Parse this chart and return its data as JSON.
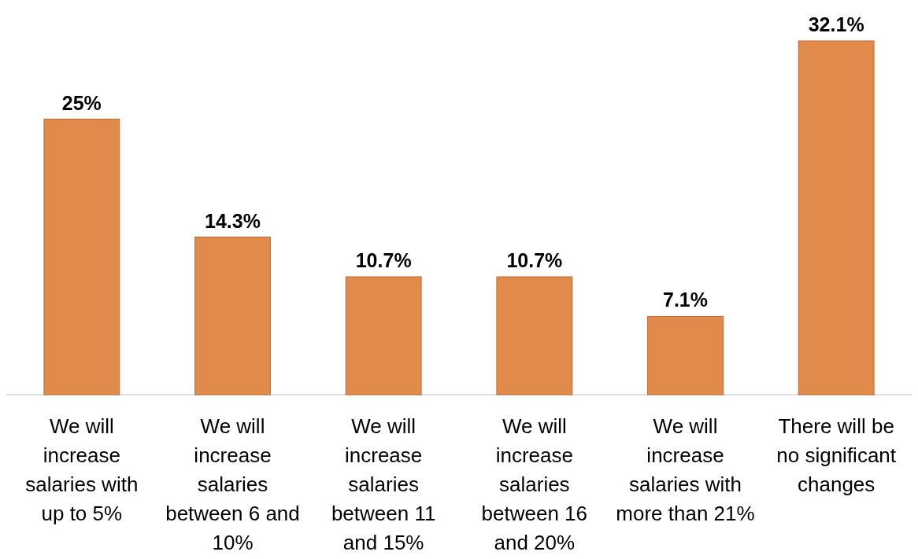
{
  "chart_data": {
    "type": "bar",
    "categories": [
      "We will increase salaries with up to 5%",
      "We will increase salaries between 6 and 10%",
      "We will increase salaries between 11 and 15%",
      "We will increase salaries between 16 and 20%",
      "We will increase salaries with more than 21%",
      "There will be no significant changes"
    ],
    "values": [
      25,
      14.3,
      10.7,
      10.7,
      7.1,
      32.1
    ],
    "value_labels": [
      "25%",
      "14.3%",
      "10.7%",
      "10.7%",
      "7.1%",
      "32.1%"
    ],
    "color": "#e08a4c"
  }
}
